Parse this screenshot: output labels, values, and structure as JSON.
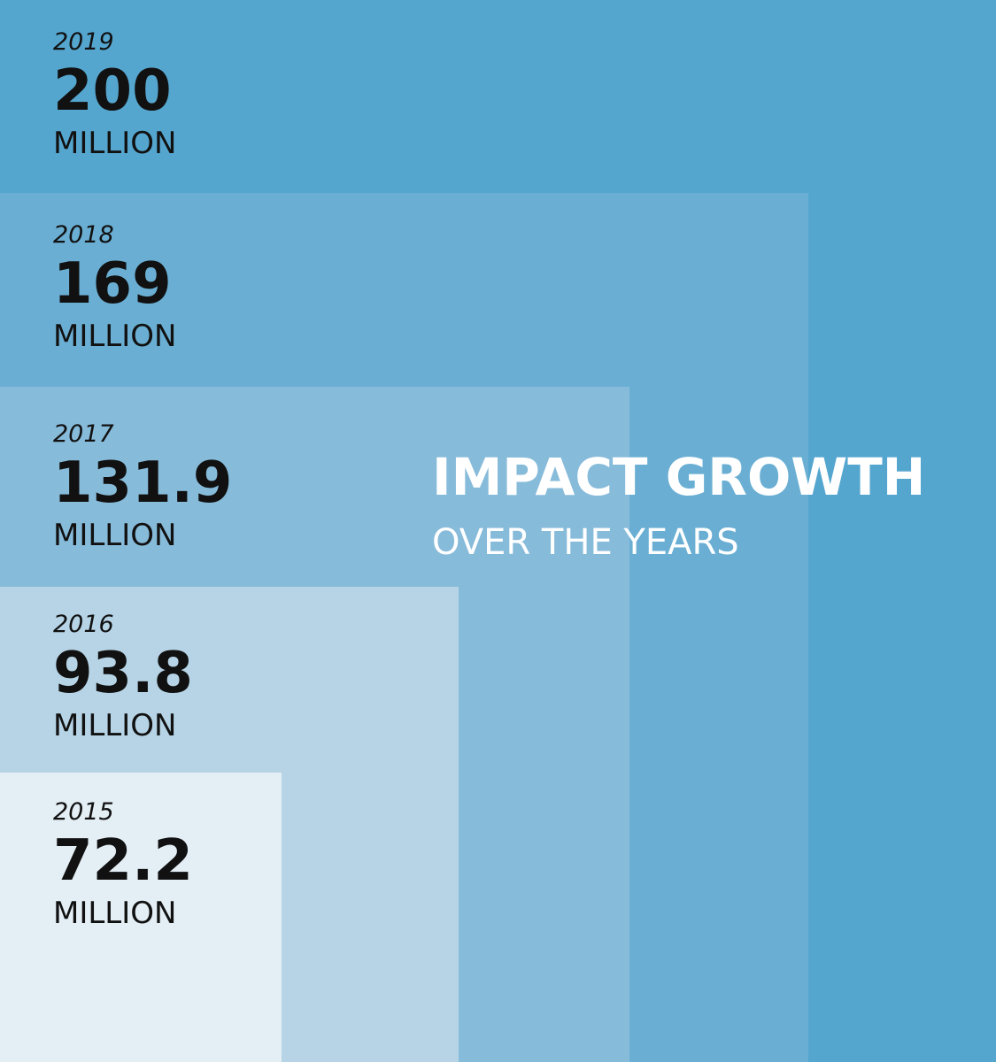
{
  "header": {
    "title": "IMPACT GROWTH",
    "subtitle": "OVER THE YEARS"
  },
  "items": [
    {
      "year": "2019",
      "value": 200,
      "unit": "MILLION"
    },
    {
      "year": "2018",
      "value": 169,
      "unit": "MILLION"
    },
    {
      "year": "2017",
      "value": 131.9,
      "unit": "MILLION"
    },
    {
      "year": "2016",
      "value": 93.8,
      "unit": "MILLION"
    },
    {
      "year": "2015",
      "value": 72.2,
      "unit": "MILLION"
    }
  ]
}
